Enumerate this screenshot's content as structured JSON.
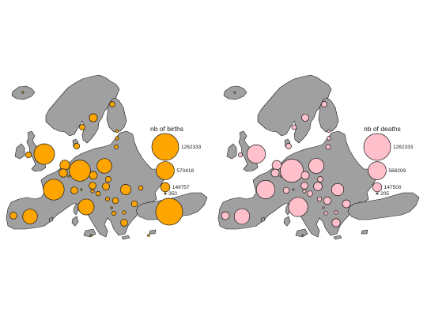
{
  "colors": {
    "land": "#a0a0a0",
    "outline": "#1a1a1a",
    "births": "#ffa500",
    "deaths": "#ffc0cb"
  },
  "maps": [
    {
      "id": "births",
      "legend": {
        "title": "nb of births",
        "values": [
          1262333,
          570418,
          149757,
          350
        ]
      },
      "symbols": [
        {
          "country": "France",
          "value": 760000
        },
        {
          "country": "Germany",
          "value": 780000
        },
        {
          "country": "United Kingdom",
          "value": 740000
        },
        {
          "country": "Italy",
          "value": 440000
        },
        {
          "country": "Spain",
          "value": 380000
        },
        {
          "country": "Turkey",
          "value": 1262333
        },
        {
          "country": "Poland",
          "value": 380000
        },
        {
          "country": "Romania",
          "value": 190000
        },
        {
          "country": "Netherlands",
          "value": 170000
        },
        {
          "country": "Belgium",
          "value": 120000
        },
        {
          "country": "Portugal",
          "value": 85000
        },
        {
          "country": "Czechia",
          "value": 110000
        },
        {
          "country": "Greece",
          "value": 85000
        },
        {
          "country": "Sweden",
          "value": 115000
        },
        {
          "country": "Hungary",
          "value": 90000
        },
        {
          "country": "Austria",
          "value": 85000
        },
        {
          "country": "Switzerland",
          "value": 87000
        },
        {
          "country": "Bulgaria",
          "value": 63000
        },
        {
          "country": "Serbia",
          "value": 64000
        },
        {
          "country": "Denmark",
          "value": 61000
        },
        {
          "country": "Finland",
          "value": 50000
        },
        {
          "country": "Norway",
          "value": 56000
        },
        {
          "country": "Ireland",
          "value": 62000
        },
        {
          "country": "Slovakia",
          "value": 57000
        },
        {
          "country": "Croatia",
          "value": 37000
        },
        {
          "country": "Lithuania",
          "value": 28000
        },
        {
          "country": "Latvia",
          "value": 20000
        },
        {
          "country": "Estonia",
          "value": 14000
        },
        {
          "country": "Slovenia",
          "value": 20000
        },
        {
          "country": "Bosnia",
          "value": 30000
        },
        {
          "country": "Albania",
          "value": 30000
        },
        {
          "country": "North Macedonia",
          "value": 21000
        },
        {
          "country": "Montenegro",
          "value": 7000
        },
        {
          "country": "Luxembourg",
          "value": 6000
        },
        {
          "country": "Moldova",
          "value": 35000
        },
        {
          "country": "Iceland",
          "value": 4000
        },
        {
          "country": "Malta",
          "value": 4300
        },
        {
          "country": "Cyprus",
          "value": 9000
        },
        {
          "country": "Liechtenstein",
          "value": 350
        }
      ]
    },
    {
      "id": "deaths",
      "legend": {
        "title": "nb of deaths",
        "values": [
          1262333,
          568209,
          147500,
          205
        ]
      },
      "symbols": [
        {
          "country": "France",
          "value": 600000
        },
        {
          "country": "Germany",
          "value": 930000
        },
        {
          "country": "United Kingdom",
          "value": 600000
        },
        {
          "country": "Italy",
          "value": 650000
        },
        {
          "country": "Spain",
          "value": 420000
        },
        {
          "country": "Poland",
          "value": 400000
        },
        {
          "country": "Romania",
          "value": 260000
        },
        {
          "country": "Netherlands",
          "value": 150000
        },
        {
          "country": "Belgium",
          "value": 110000
        },
        {
          "country": "Portugal",
          "value": 110000
        },
        {
          "country": "Czechia",
          "value": 112000
        },
        {
          "country": "Greece",
          "value": 120000
        },
        {
          "country": "Sweden",
          "value": 90000
        },
        {
          "country": "Hungary",
          "value": 130000
        },
        {
          "country": "Austria",
          "value": 83000
        },
        {
          "country": "Switzerland",
          "value": 67000
        },
        {
          "country": "Bulgaria",
          "value": 110000
        },
        {
          "country": "Serbia",
          "value": 100000
        },
        {
          "country": "Denmark",
          "value": 54000
        },
        {
          "country": "Finland",
          "value": 54000
        },
        {
          "country": "Norway",
          "value": 41000
        },
        {
          "country": "Ireland",
          "value": 31000
        },
        {
          "country": "Slovakia",
          "value": 53000
        },
        {
          "country": "Croatia",
          "value": 52000
        },
        {
          "country": "Lithuania",
          "value": 40000
        },
        {
          "country": "Latvia",
          "value": 28000
        },
        {
          "country": "Estonia",
          "value": 15000
        },
        {
          "country": "Slovenia",
          "value": 20000
        },
        {
          "country": "Bosnia",
          "value": 35000
        },
        {
          "country": "Albania",
          "value": 21000
        },
        {
          "country": "North Macedonia",
          "value": 20000
        },
        {
          "country": "Montenegro",
          "value": 6000
        },
        {
          "country": "Luxembourg",
          "value": 4000
        },
        {
          "country": "Iceland",
          "value": 2200
        },
        {
          "country": "Malta",
          "value": 3300
        },
        {
          "country": "Liechtenstein",
          "value": 205
        }
      ]
    }
  ]
}
